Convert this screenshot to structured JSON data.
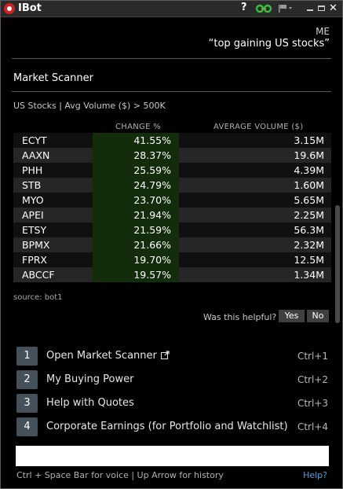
{
  "window": {
    "title": "IBot",
    "help_glyph": "?",
    "close_glyph": "✕"
  },
  "chat": {
    "speaker": "ME",
    "query": "“top gaining US stocks”"
  },
  "scanner": {
    "title": "Market Scanner",
    "filter": "US Stocks | Avg Volume ($) > 500K",
    "columns": {
      "change": "CHANGE %",
      "volume": "AVERAGE VOLUME ($)"
    },
    "rows": [
      {
        "symbol": "ECYT",
        "change": "41.55%",
        "volume": "3.15M"
      },
      {
        "symbol": "AAXN",
        "change": "28.37%",
        "volume": "19.6M"
      },
      {
        "symbol": "PHH",
        "change": "25.59%",
        "volume": "4.39M"
      },
      {
        "symbol": "STB",
        "change": "24.79%",
        "volume": "1.60M"
      },
      {
        "symbol": "MYO",
        "change": "23.70%",
        "volume": "5.65M"
      },
      {
        "symbol": "APEI",
        "change": "21.94%",
        "volume": "2.25M"
      },
      {
        "symbol": "ETSY",
        "change": "21.59%",
        "volume": "56.3M"
      },
      {
        "symbol": "BPMX",
        "change": "21.66%",
        "volume": "2.32M"
      },
      {
        "symbol": "FPRX",
        "change": "19.70%",
        "volume": "12.5M"
      },
      {
        "symbol": "ABCCF",
        "change": "19.57%",
        "volume": "1.34M"
      }
    ],
    "source": "source: bot1",
    "helpful": {
      "question": "Was this helpful?",
      "yes": "Yes",
      "no": "No"
    }
  },
  "options": [
    {
      "num": "1",
      "label": "Open Market Scanner",
      "shortcut": "Ctrl+1"
    },
    {
      "num": "2",
      "label": "My Buying Power",
      "shortcut": "Ctrl+2"
    },
    {
      "num": "3",
      "label": "Help with Quotes",
      "shortcut": "Ctrl+3"
    },
    {
      "num": "4",
      "label": "Corporate Earnings (for Portfolio and Watchlist)",
      "shortcut": "Ctrl+4"
    }
  ],
  "input": {
    "value": "",
    "hint": "Ctrl + Space Bar for voice | Up Arrow for history",
    "help_link": "Help?"
  },
  "colors": {
    "background": "#000000",
    "change_column_bg": "#132d0c",
    "option_badge": "#44505a",
    "link": "#4aa3df",
    "brand_red": "#d21f1f"
  },
  "icons": {
    "app": "ibot-logo-icon",
    "link": "green-link-icon",
    "flag": "flag-icon",
    "external": "external-link-icon"
  }
}
